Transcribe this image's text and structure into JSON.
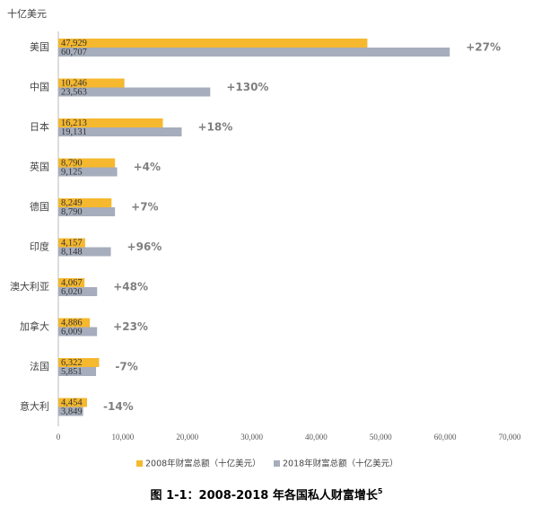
{
  "chart_data": {
    "type": "hbar",
    "unit_label": "十亿美元",
    "caption": "图 1-1：2008-2018 年各国私人财富增长",
    "caption_note": "5",
    "categories": [
      "美国",
      "中国",
      "日本",
      "英国",
      "德国",
      "印度",
      "澳大利亚",
      "加拿大",
      "法国",
      "意大利"
    ],
    "series": [
      {
        "name": "2008年财富总额（十亿美元）",
        "color": "#f5b82e",
        "values": [
          47929,
          10246,
          16213,
          8790,
          8249,
          4157,
          4067,
          4886,
          6322,
          4454
        ],
        "value_labels": [
          "47,929",
          "10,246",
          "16,213",
          "8,790",
          "8,249",
          "4,157",
          "4,067",
          "4,886",
          "6,322",
          "4,454"
        ]
      },
      {
        "name": "2018年财富总额（十亿美元）",
        "color": "#a6adbc",
        "values": [
          60707,
          23563,
          19131,
          9125,
          8790,
          8148,
          6020,
          6009,
          5851,
          3849
        ],
        "value_labels": [
          "60,707",
          "23,563",
          "19,131",
          "9,125",
          "8,790",
          "8,148",
          "6,020",
          "6,009",
          "5,851",
          "3,849"
        ]
      }
    ],
    "annotations": [
      "+27%",
      "+130%",
      "+18%",
      "+4%",
      "+7%",
      "+96%",
      "+48%",
      "+23%",
      "-7%",
      "-14%"
    ],
    "xlim": [
      0,
      70000
    ],
    "xticks": [
      0,
      {
        "value": 10000,
        "label": "10,000"
      },
      {
        "value": 20000,
        "label": "20,000"
      },
      {
        "value": 30000,
        "label": "30,000"
      },
      {
        "value": 40000,
        "label": "40,000"
      },
      {
        "value": 50000,
        "label": "50,000"
      },
      {
        "value": 60000,
        "label": "60,000"
      },
      {
        "value": 70000,
        "label": "70,000"
      }
    ],
    "legend": "bottom"
  }
}
